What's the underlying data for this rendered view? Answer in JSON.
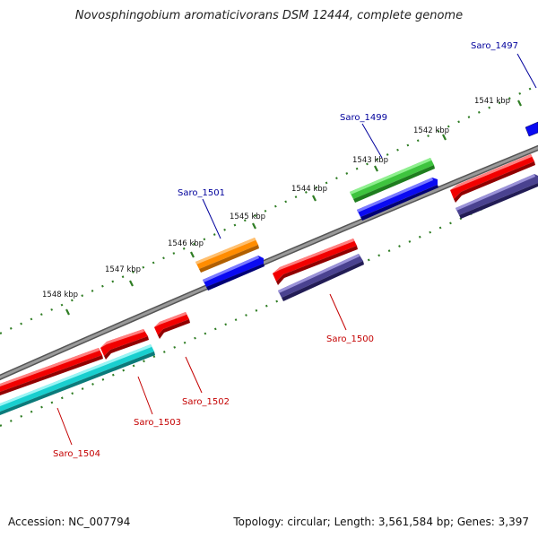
{
  "title": "Novosphingobium aromaticivorans DSM 12444, complete genome",
  "accession": "Accession: NC_007794",
  "summary": "Topology: circular; Length: 3,561,584 bp; Genes: 3,397",
  "colors": {
    "backbone": "#8c8c8c",
    "tick": "#2f7d24",
    "label_forward": "#00009c",
    "label_reverse": "#c40000",
    "red": "#f20000",
    "blue": "#0a0af2",
    "slate": "#4a4290",
    "green": "#3ec43e",
    "orange": "#ff8c00",
    "cyan": "#19cfcf"
  },
  "scale_labels": [
    "1541 kbp",
    "1542 kbp",
    "1543 kbp",
    "1544 kbp",
    "1545 kbp",
    "1546 kbp",
    "1547 kbp",
    "1548 kbp"
  ],
  "gene_labels": {
    "forward": [
      "Saro_1497",
      "Saro_1499",
      "Saro_1501"
    ],
    "reverse": [
      "Saro_1500",
      "Saro_1502",
      "Saro_1503",
      "Saro_1504"
    ]
  }
}
